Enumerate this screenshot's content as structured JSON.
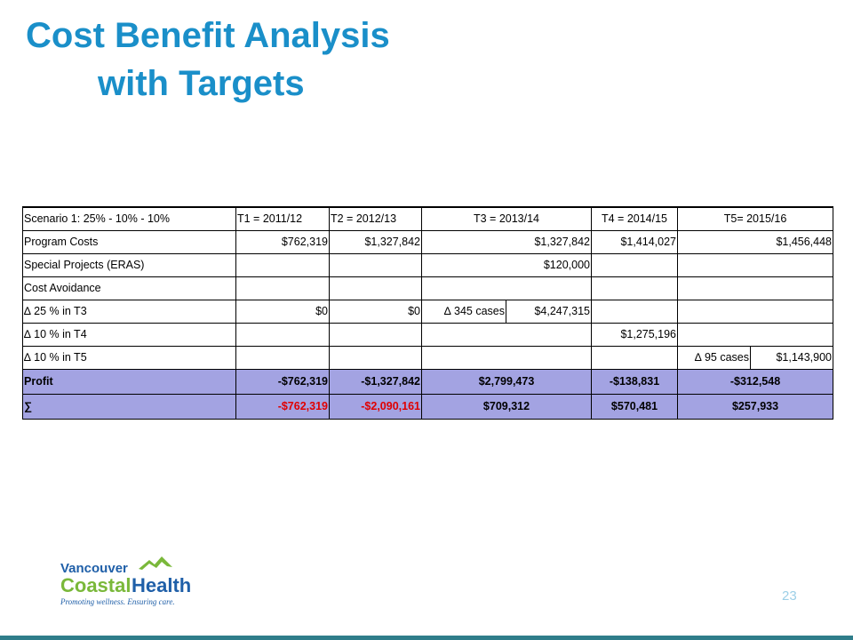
{
  "title_line1": "Cost Benefit Analysis",
  "title_line2": "with Targets",
  "table": {
    "headers": [
      "Scenario 1: 25% - 10% - 10%",
      "T1 = 2011/12",
      "T2 = 2012/13",
      "T3 = 2013/14",
      "T4 = 2014/15",
      "T5= 2015/16"
    ],
    "program_costs": {
      "label": "Program Costs",
      "t1": "$762,319",
      "t2": "$1,327,842",
      "t3": "$1,327,842",
      "t4": "$1,414,027",
      "t5": "$1,456,448"
    },
    "special_projects": {
      "label": "Special Projects (ERAS)",
      "t3": "$120,000"
    },
    "cost_avoidance": {
      "label": "Cost Avoidance"
    },
    "delta_t3": {
      "label": "∆ 25 % in T3",
      "t1": "$0",
      "t2": "$0",
      "t3_cases": "∆ 345 cases",
      "t3_value": "$4,247,315"
    },
    "delta_t4": {
      "label": "∆ 10 % in T4",
      "t4": "$1,275,196"
    },
    "delta_t5": {
      "label": "∆ 10 % in T5",
      "t5_cases": "∆ 95 cases",
      "t5_value": "$1,143,900"
    },
    "profit": {
      "label": "Profit",
      "t1": "-$762,319",
      "t2": "-$1,327,842",
      "t3": "$2,799,473",
      "t4": "-$138,831",
      "t5": "-$312,548"
    },
    "sum": {
      "label": "∑",
      "t1": "-$762,319",
      "t2": "-$2,090,161",
      "t3": "$709,312",
      "t4": "$570,481",
      "t5": "$257,933"
    }
  },
  "logo": {
    "line1": "Vancouver",
    "line2a": "Coastal",
    "line2b": "Health",
    "tagline": "Promoting wellness. Ensuring care."
  },
  "page_number": "23",
  "colors": {
    "title": "#1a8fc9",
    "highlight_row": "#a3a3e2",
    "negative_red": "#e00000",
    "logo_blue": "#1f5fa8",
    "logo_green": "#7ab83a"
  }
}
